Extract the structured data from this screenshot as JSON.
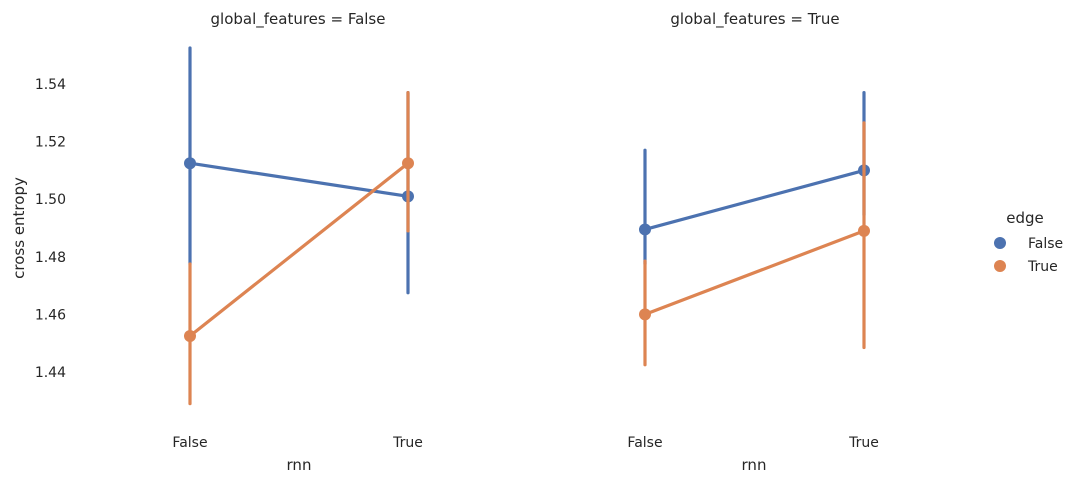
{
  "chart_data": {
    "type": "line",
    "subtype": "pointplot-facet",
    "ylabel": "cross entropy",
    "xlabel": "rnn",
    "categories": [
      "False",
      "True"
    ],
    "yticks": [
      "1.44",
      "1.46",
      "1.48",
      "1.50",
      "1.52",
      "1.54"
    ],
    "ylim": [
      1.422,
      1.555
    ],
    "grid": false,
    "legend": {
      "title": "edge",
      "placement": "right",
      "entries": [
        {
          "label": "False",
          "color": "#4c72b0"
        },
        {
          "label": "True",
          "color": "#dd8452"
        }
      ]
    },
    "panels": [
      {
        "title": "global_features = False",
        "series": [
          {
            "name": "False",
            "color": "#4c72b0",
            "values": [
              1.5125,
              1.501
            ],
            "ci_low": [
              1.4775,
              1.4675
            ],
            "ci_high": [
              1.5525,
              1.537
            ]
          },
          {
            "name": "True",
            "color": "#dd8452",
            "values": [
              1.4525,
              1.5125
            ],
            "ci_low": [
              1.429,
              1.489
            ],
            "ci_high": [
              1.4775,
              1.537
            ]
          }
        ]
      },
      {
        "title": "global_features = True",
        "series": [
          {
            "name": "False",
            "color": "#4c72b0",
            "values": [
              1.4895,
              1.51
            ],
            "ci_low": [
              1.4775,
              1.4945
            ],
            "ci_high": [
              1.517,
              1.537
            ]
          },
          {
            "name": "True",
            "color": "#dd8452",
            "values": [
              1.46,
              1.489
            ],
            "ci_low": [
              1.4425,
              1.4485
            ],
            "ci_high": [
              1.4785,
              1.5265
            ]
          }
        ]
      }
    ]
  }
}
